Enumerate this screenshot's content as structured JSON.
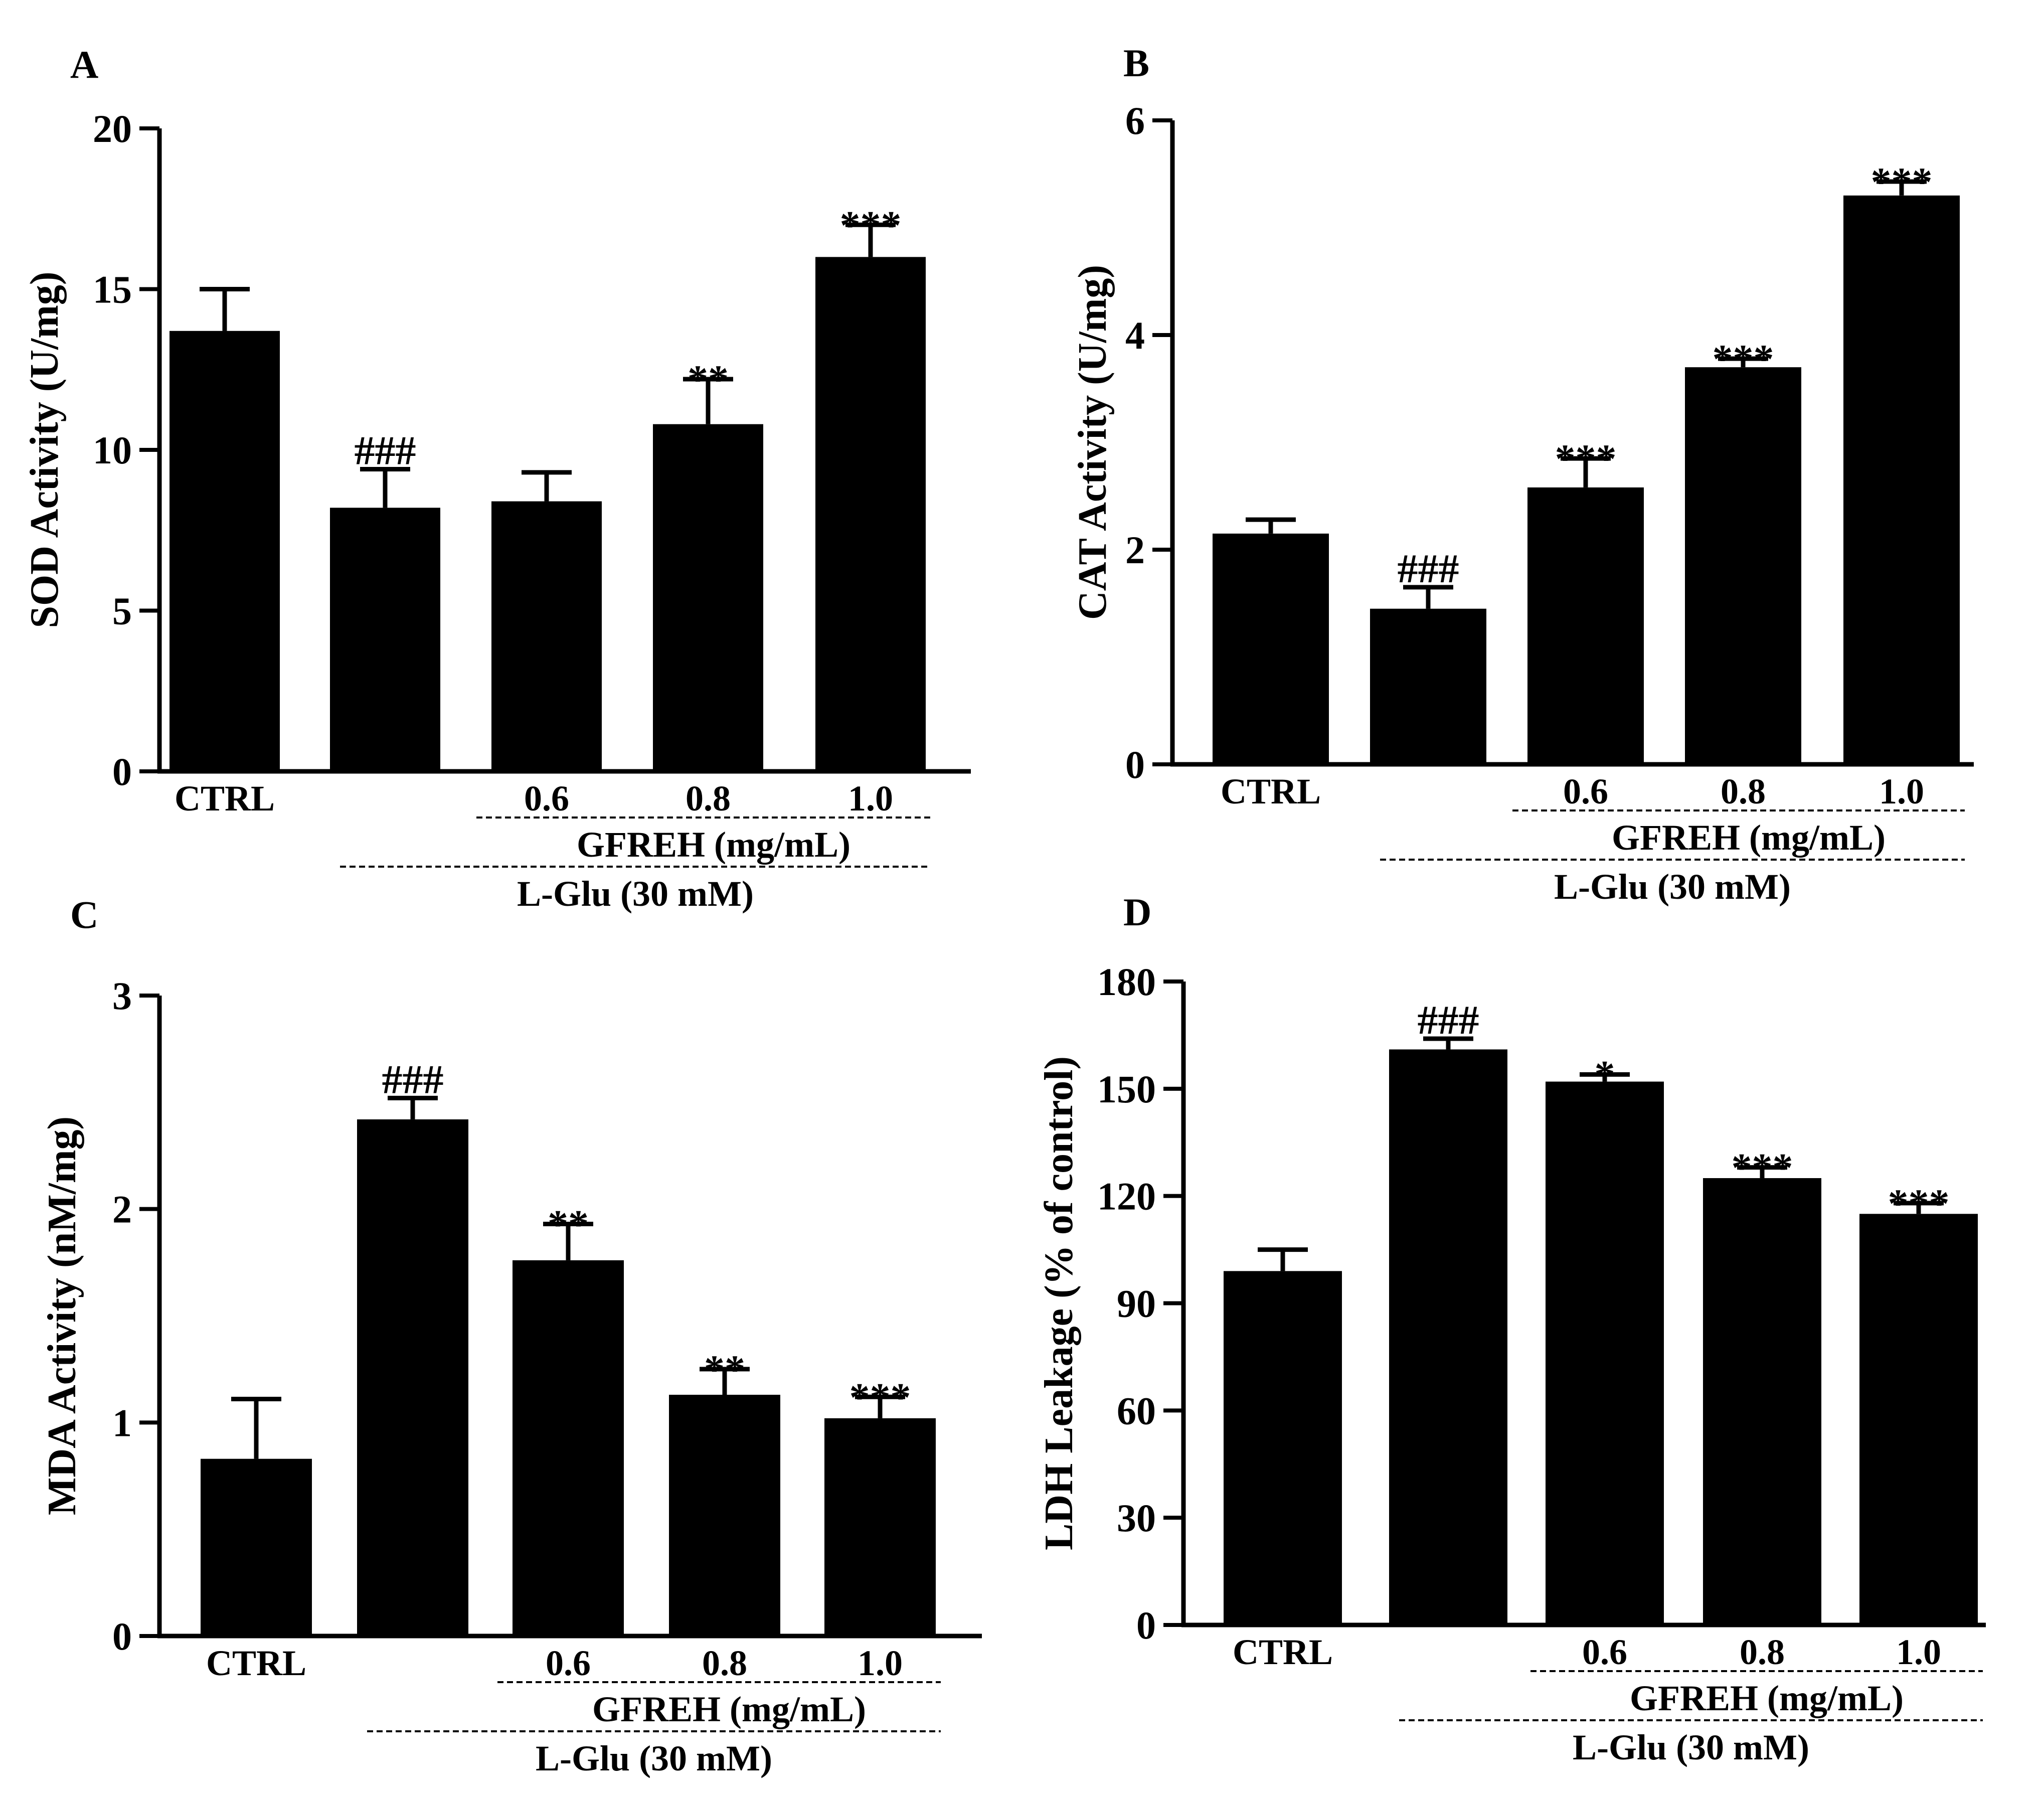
{
  "figure": {
    "treatment_group_label": "GFREH (mg/mL)",
    "inducer_group_label": "L-Glu (30 mM)"
  },
  "chart_data": [
    {
      "panel": "A",
      "type": "bar",
      "title": "",
      "xlabel": "",
      "ylabel": "SOD Activity (U/mg)",
      "ylim": [
        0,
        20
      ],
      "yticks": [
        "0",
        "5",
        "10",
        "15",
        "20"
      ],
      "categories": [
        "CTRL",
        "",
        "0.6",
        "0.8",
        "1.0"
      ],
      "values": [
        13.7,
        8.2,
        8.4,
        10.8,
        16.0
      ],
      "errors": [
        1.3,
        1.2,
        0.9,
        1.4,
        1.0
      ],
      "significance": [
        "",
        "###",
        "",
        "**",
        "***"
      ],
      "group_labels": [
        "GFREH (mg/mL)",
        "L-Glu (30 mM)"
      ]
    },
    {
      "panel": "B",
      "type": "bar",
      "title": "",
      "xlabel": "",
      "ylabel": "CAT Activity (U/mg)",
      "ylim": [
        0,
        6
      ],
      "yticks": [
        "0",
        "2",
        "4",
        "6"
      ],
      "categories": [
        "CTRL",
        "",
        "0.6",
        "0.8",
        "1.0"
      ],
      "values": [
        2.15,
        1.45,
        2.58,
        3.7,
        5.3
      ],
      "errors": [
        0.13,
        0.2,
        0.27,
        0.08,
        0.13
      ],
      "significance": [
        "",
        "###",
        "***",
        "***",
        "***"
      ],
      "group_labels": [
        "GFREH (mg/mL)",
        "L-Glu (30 mM)"
      ]
    },
    {
      "panel": "C",
      "type": "bar",
      "title": "",
      "xlabel": "",
      "ylabel": "MDA Activity (nM/mg)",
      "ylim": [
        0,
        3
      ],
      "yticks": [
        "0",
        "1",
        "2",
        "3"
      ],
      "categories": [
        "CTRL",
        "",
        "0.6",
        "0.8",
        "1.0"
      ],
      "values": [
        0.83,
        2.42,
        1.76,
        1.13,
        1.02
      ],
      "errors": [
        0.28,
        0.1,
        0.17,
        0.12,
        0.1
      ],
      "significance": [
        "",
        "###",
        "**",
        "**",
        "***"
      ],
      "group_labels": [
        "GFREH (mg/mL)",
        "L-Glu (30 mM)"
      ]
    },
    {
      "panel": "D",
      "type": "bar",
      "title": "",
      "xlabel": "",
      "ylabel": "LDH Leakage (% of control)",
      "ylim": [
        0,
        180
      ],
      "yticks": [
        "0",
        "30",
        "60",
        "90",
        "120",
        "150",
        "180"
      ],
      "categories": [
        "CTRL",
        "",
        "0.6",
        "0.8",
        "1.0"
      ],
      "values": [
        99,
        161,
        152,
        125,
        115
      ],
      "errors": [
        6,
        3,
        2,
        3,
        3
      ],
      "significance": [
        "",
        "###",
        "*",
        "***",
        "***"
      ],
      "group_labels": [
        "GFREH (mg/mL)",
        "L-Glu (30 mM)"
      ]
    }
  ]
}
